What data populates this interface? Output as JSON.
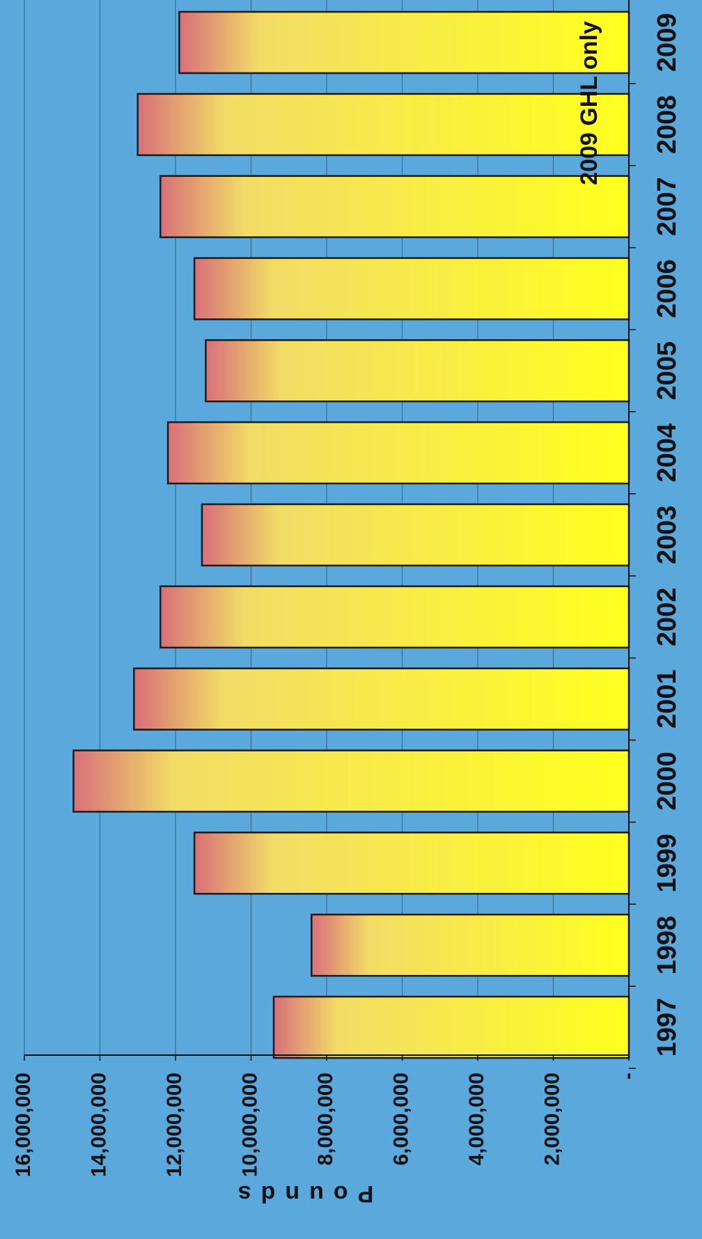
{
  "chart_data": {
    "type": "bar",
    "orientation": "horizontal (image rotated 90° clockwise)",
    "categories": [
      "1997",
      "1998",
      "1999",
      "2000",
      "2001",
      "2002",
      "2003",
      "2004",
      "2005",
      "2006",
      "2007",
      "2008",
      "2009"
    ],
    "values": [
      9400000,
      8400000,
      11500000,
      14700000,
      13100000,
      12400000,
      11300000,
      12200000,
      11200000,
      11500000,
      12400000,
      13000000,
      11900000
    ],
    "xlabel": "",
    "ylabel": "Pounds",
    "ylim": [
      0,
      16000000
    ],
    "y_ticks": [
      0,
      2000000,
      4000000,
      6000000,
      8000000,
      10000000,
      12000000,
      14000000,
      16000000
    ],
    "y_tick_labels": [
      "-",
      "2,000,000",
      "4,000,000",
      "6,000,000",
      "8,000,000",
      "10,000,000",
      "12,000,000",
      "14,000,000",
      "16,000,000"
    ],
    "annotation": "2009 GHL only",
    "grid": true,
    "legend": "none",
    "colors": {
      "background": "#5aa8dc",
      "bar_light": "#ffff1e",
      "bar_mid": "#f2dc66",
      "bar_dark": "#d8707a",
      "bar_outline": "#1a1a1a",
      "gridline": "#3a6f96",
      "text": "#111111"
    }
  }
}
